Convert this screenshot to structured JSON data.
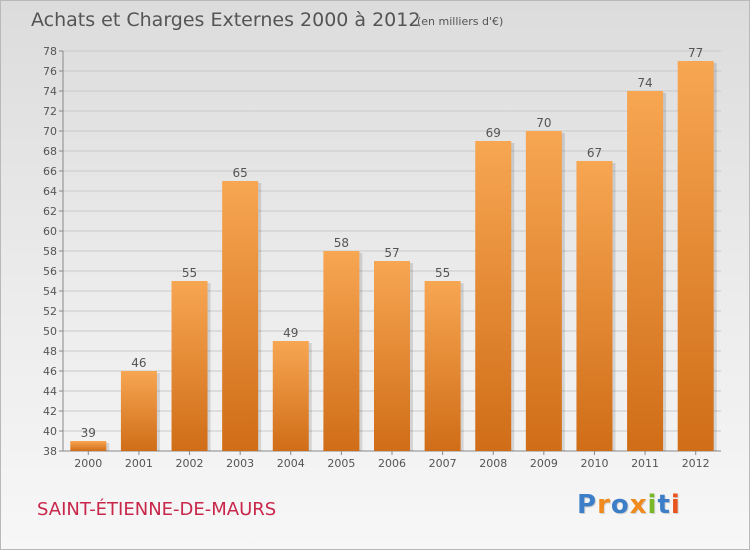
{
  "header": {
    "title": "Achats et Charges Externes 2000 à 2012",
    "subtitle": "(en milliers d'€)"
  },
  "footer": {
    "commune": "SAINT-ÉTIENNE-DE-MAURS",
    "logo": "Proxiti"
  },
  "colors": {
    "bar_light": "#f7a652",
    "bar_dark": "#d06d18",
    "text": "#555555",
    "commune": "#c8264a",
    "logo_letters": [
      "#3c7fc8",
      "#f08a1c",
      "#3c7fc8",
      "#f08a1c",
      "#7ab828",
      "#3c7fc8",
      "#e8541c"
    ]
  },
  "chart_data": {
    "type": "bar",
    "categories": [
      "2000",
      "2001",
      "2002",
      "2003",
      "2004",
      "2005",
      "2006",
      "2007",
      "2008",
      "2009",
      "2010",
      "2011",
      "2012"
    ],
    "values": [
      39,
      46,
      55,
      65,
      49,
      58,
      57,
      55,
      69,
      70,
      67,
      74,
      77
    ],
    "ylim": [
      38,
      78
    ],
    "yticks": [
      38,
      40,
      42,
      44,
      46,
      48,
      50,
      52,
      54,
      56,
      58,
      60,
      62,
      64,
      66,
      68,
      70,
      72,
      74,
      76,
      78
    ],
    "grid": true,
    "data_labels": true
  }
}
